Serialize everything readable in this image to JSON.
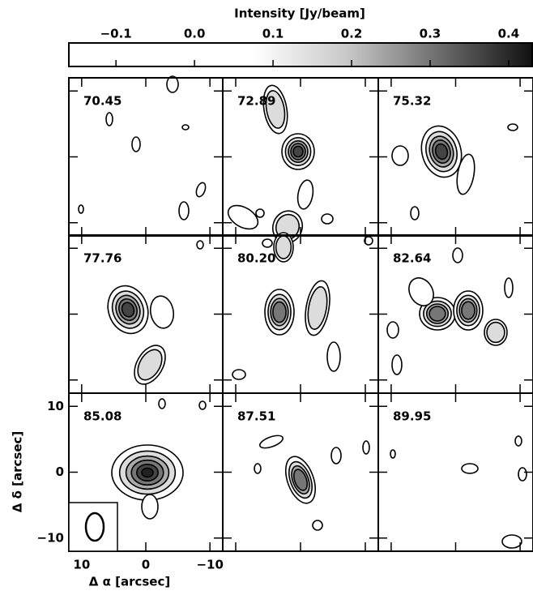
{
  "chart_data": {
    "type": "channel-map",
    "colorbar": {
      "label": "Intensity [Jy/beam]",
      "lim": [
        -0.16,
        0.43
      ],
      "ticks": [
        {
          "value": -0.1,
          "label": "−0.1"
        },
        {
          "value": 0,
          "label": "0.0"
        },
        0.1,
        0.2,
        0.3,
        0.4
      ]
    },
    "panels": [
      "70.45",
      "72.89",
      "75.32",
      "77.76",
      "80.20",
      "82.64",
      "85.08",
      "87.51",
      "89.95"
    ],
    "xlabel": "Δ α [arcsec]",
    "ylabel": "Δ δ [arcsec]",
    "xlim": [
      12,
      -12
    ],
    "ylim": [
      -12,
      12
    ],
    "xticks": [
      10,
      0,
      {
        "value": -10,
        "label": "−10"
      }
    ],
    "yticks": [
      {
        "value": -10,
        "label": "−10"
      },
      0,
      10
    ]
  }
}
